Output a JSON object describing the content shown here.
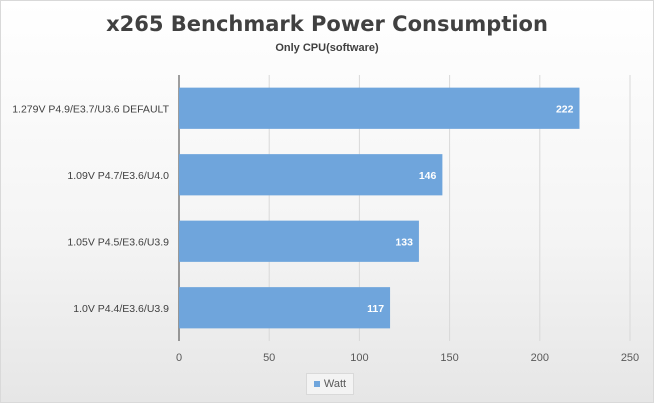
{
  "chart_data": {
    "type": "bar",
    "orientation": "horizontal",
    "title": "x265 Benchmark Power Consumption",
    "subtitle": "Only CPU(software)",
    "categories": [
      "1.279V P4.9/E3.7/U3.6 DEFAULT",
      "1.09V P4.7/E3.6/U4.0",
      "1.05V P4.5/E3.6/U3.9",
      "1.0V P4.4/E3.6/U3.9"
    ],
    "series": [
      {
        "name": "Watt",
        "values": [
          222,
          146,
          133,
          117
        ],
        "color": "#6fa5dc"
      }
    ],
    "xlim": [
      0,
      250
    ],
    "xticks": [
      "0",
      "50",
      "100",
      "150",
      "200",
      "250"
    ],
    "data_labels": true,
    "grid": "vertical",
    "legend": "bottom"
  }
}
